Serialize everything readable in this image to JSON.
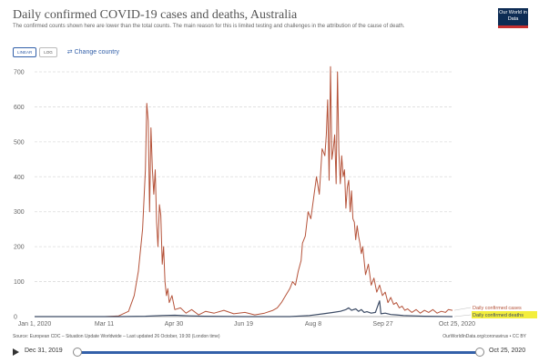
{
  "header": {
    "title": "Daily confirmed COVID-19 cases and deaths, Australia",
    "subtitle": "The confirmed counts shown here are lower than the total counts. The main reason for this is limited testing and challenges in the attribution of the cause of death.",
    "logo_text": "Our World in Data"
  },
  "controls": {
    "linear_label": "LINEAR",
    "log_label": "LOG",
    "change_country_label": "Change country"
  },
  "colors": {
    "cases": "#b5533a",
    "deaths": "#3d4c66",
    "accent": "#3360a9",
    "grid": "#dcdcdc",
    "highlight": "#f3ee3d"
  },
  "chart_data": {
    "type": "line",
    "title": "Daily confirmed COVID-19 cases and deaths, Australia",
    "x_axis": {
      "type": "date",
      "min": "2020-01-01",
      "max": "2020-10-25",
      "tick_labels": [
        "Jan 1, 2020",
        "Mar 11",
        "Apr 30",
        "Jun 19",
        "Aug 8",
        "Sep 27",
        "Oct 25, 2020"
      ]
    },
    "y_axis": {
      "min": 0,
      "max": 700,
      "ticks": [
        0,
        100,
        200,
        300,
        400,
        500,
        600,
        700
      ]
    },
    "grid": "horizontal dashed",
    "legend": "right, inline labels at series end",
    "series": [
      {
        "name": "Daily confirmed cases",
        "color": "#b5533a",
        "points": [
          [
            "2020-01-01",
            0
          ],
          [
            "2020-02-20",
            0
          ],
          [
            "2020-03-01",
            2
          ],
          [
            "2020-03-08",
            15
          ],
          [
            "2020-03-12",
            60
          ],
          [
            "2020-03-15",
            130
          ],
          [
            "2020-03-18",
            250
          ],
          [
            "2020-03-20",
            420
          ],
          [
            "2020-03-21",
            610
          ],
          [
            "2020-03-22",
            560
          ],
          [
            "2020-03-23",
            300
          ],
          [
            "2020-03-24",
            540
          ],
          [
            "2020-03-25",
            420
          ],
          [
            "2020-03-26",
            350
          ],
          [
            "2020-03-27",
            420
          ],
          [
            "2020-03-28",
            270
          ],
          [
            "2020-03-29",
            200
          ],
          [
            "2020-03-30",
            320
          ],
          [
            "2020-03-31",
            290
          ],
          [
            "2020-04-01",
            150
          ],
          [
            "2020-04-02",
            200
          ],
          [
            "2020-04-03",
            100
          ],
          [
            "2020-04-04",
            60
          ],
          [
            "2020-04-05",
            80
          ],
          [
            "2020-04-06",
            40
          ],
          [
            "2020-04-08",
            60
          ],
          [
            "2020-04-10",
            20
          ],
          [
            "2020-04-14",
            25
          ],
          [
            "2020-04-18",
            10
          ],
          [
            "2020-04-22",
            20
          ],
          [
            "2020-04-27",
            5
          ],
          [
            "2020-05-02",
            15
          ],
          [
            "2020-05-08",
            10
          ],
          [
            "2020-05-15",
            18
          ],
          [
            "2020-05-22",
            8
          ],
          [
            "2020-05-30",
            12
          ],
          [
            "2020-06-06",
            5
          ],
          [
            "2020-06-13",
            10
          ],
          [
            "2020-06-19",
            18
          ],
          [
            "2020-06-22",
            25
          ],
          [
            "2020-06-25",
            40
          ],
          [
            "2020-06-28",
            60
          ],
          [
            "2020-07-01",
            80
          ],
          [
            "2020-07-03",
            100
          ],
          [
            "2020-07-05",
            90
          ],
          [
            "2020-07-07",
            130
          ],
          [
            "2020-07-09",
            160
          ],
          [
            "2020-07-10",
            210
          ],
          [
            "2020-07-12",
            230
          ],
          [
            "2020-07-14",
            300
          ],
          [
            "2020-07-16",
            280
          ],
          [
            "2020-07-18",
            340
          ],
          [
            "2020-07-20",
            400
          ],
          [
            "2020-07-22",
            350
          ],
          [
            "2020-07-24",
            480
          ],
          [
            "2020-07-26",
            460
          ],
          [
            "2020-07-27",
            520
          ],
          [
            "2020-07-28",
            620
          ],
          [
            "2020-07-29",
            390
          ],
          [
            "2020-07-30",
            715
          ],
          [
            "2020-07-31",
            450
          ],
          [
            "2020-08-01",
            480
          ],
          [
            "2020-08-02",
            520
          ],
          [
            "2020-08-03",
            380
          ],
          [
            "2020-08-04",
            700
          ],
          [
            "2020-08-05",
            470
          ],
          [
            "2020-08-06",
            380
          ],
          [
            "2020-08-07",
            460
          ],
          [
            "2020-08-08",
            400
          ],
          [
            "2020-08-09",
            420
          ],
          [
            "2020-08-10",
            310
          ],
          [
            "2020-08-11",
            370
          ],
          [
            "2020-08-12",
            390
          ],
          [
            "2020-08-13",
            300
          ],
          [
            "2020-08-14",
            360
          ],
          [
            "2020-08-15",
            280
          ],
          [
            "2020-08-16",
            270
          ],
          [
            "2020-08-17",
            220
          ],
          [
            "2020-08-18",
            260
          ],
          [
            "2020-08-19",
            230
          ],
          [
            "2020-08-20",
            210
          ],
          [
            "2020-08-21",
            180
          ],
          [
            "2020-08-22",
            200
          ],
          [
            "2020-08-24",
            120
          ],
          [
            "2020-08-26",
            150
          ],
          [
            "2020-08-28",
            90
          ],
          [
            "2020-08-30",
            110
          ],
          [
            "2020-09-01",
            70
          ],
          [
            "2020-09-03",
            90
          ],
          [
            "2020-09-05",
            60
          ],
          [
            "2020-09-07",
            70
          ],
          [
            "2020-09-09",
            40
          ],
          [
            "2020-09-11",
            55
          ],
          [
            "2020-09-13",
            35
          ],
          [
            "2020-09-15",
            40
          ],
          [
            "2020-09-17",
            25
          ],
          [
            "2020-09-19",
            30
          ],
          [
            "2020-09-21",
            18
          ],
          [
            "2020-09-23",
            22
          ],
          [
            "2020-09-26",
            12
          ],
          [
            "2020-09-29",
            20
          ],
          [
            "2020-10-02",
            10
          ],
          [
            "2020-10-05",
            18
          ],
          [
            "2020-10-08",
            12
          ],
          [
            "2020-10-11",
            20
          ],
          [
            "2020-10-14",
            10
          ],
          [
            "2020-10-17",
            15
          ],
          [
            "2020-10-20",
            12
          ],
          [
            "2020-10-22",
            20
          ],
          [
            "2020-10-25",
            18
          ]
        ]
      },
      {
        "name": "Daily confirmed deaths",
        "color": "#3d4c66",
        "points": [
          [
            "2020-01-01",
            0
          ],
          [
            "2020-03-01",
            0
          ],
          [
            "2020-03-20",
            1
          ],
          [
            "2020-04-01",
            3
          ],
          [
            "2020-04-10",
            4
          ],
          [
            "2020-04-20",
            2
          ],
          [
            "2020-05-01",
            1
          ],
          [
            "2020-06-01",
            0
          ],
          [
            "2020-07-01",
            0
          ],
          [
            "2020-07-15",
            3
          ],
          [
            "2020-07-25",
            8
          ],
          [
            "2020-08-01",
            12
          ],
          [
            "2020-08-06",
            15
          ],
          [
            "2020-08-10",
            20
          ],
          [
            "2020-08-12",
            25
          ],
          [
            "2020-08-14",
            18
          ],
          [
            "2020-08-17",
            22
          ],
          [
            "2020-08-19",
            15
          ],
          [
            "2020-08-21",
            20
          ],
          [
            "2020-08-23",
            12
          ],
          [
            "2020-08-25",
            14
          ],
          [
            "2020-08-28",
            10
          ],
          [
            "2020-08-31",
            12
          ],
          [
            "2020-09-03",
            45
          ],
          [
            "2020-09-04",
            8
          ],
          [
            "2020-09-07",
            10
          ],
          [
            "2020-09-11",
            6
          ],
          [
            "2020-09-15",
            5
          ],
          [
            "2020-09-20",
            3
          ],
          [
            "2020-09-27",
            2
          ],
          [
            "2020-10-05",
            1
          ],
          [
            "2020-10-25",
            0
          ]
        ]
      }
    ]
  },
  "footer": {
    "source": "Source: European CDC – Situation Update Worldwide – Last updated 26 October, 19:30 (London time)",
    "license": "OurWorldInData.org/coronavirus • CC BY"
  },
  "timeline": {
    "start_label": "Dec 31, 2019",
    "end_label": "Oct 25, 2020"
  }
}
